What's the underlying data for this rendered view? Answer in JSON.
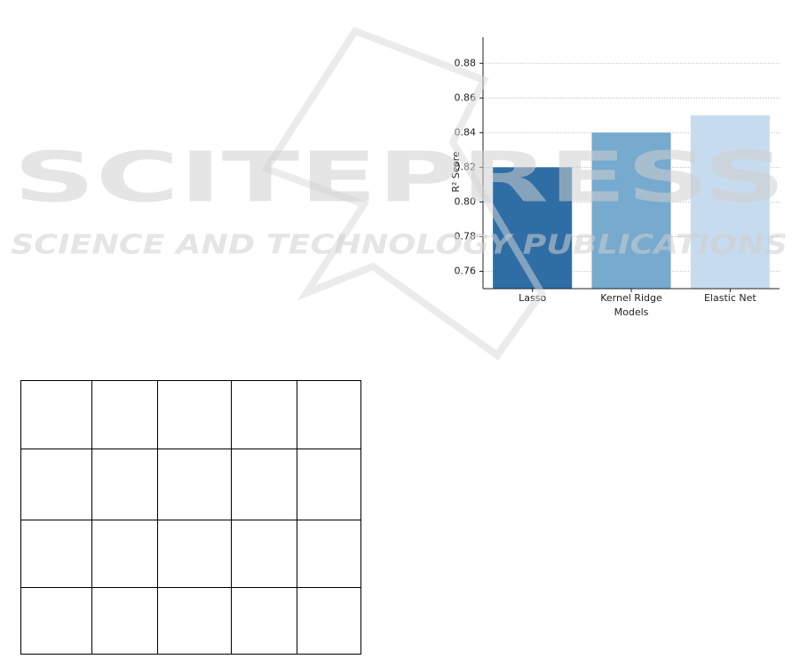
{
  "chart_data": {
    "type": "bar",
    "categories": [
      "Lasso",
      "Kernel Ridge",
      "Elastic Net"
    ],
    "values": [
      0.82,
      0.84,
      0.85
    ],
    "colors": [
      "#2f6ea5",
      "#76aacf",
      "#c7dbee"
    ],
    "x_label": "Models",
    "y_label": "R² Score",
    "ylim": [
      0.75,
      0.895
    ],
    "yticks": [
      0.76,
      0.78,
      {
        "value": 0.8,
        "label": "0.80"
      },
      0.82,
      0.84,
      0.86,
      0.88
    ],
    "grid": true
  },
  "watermark": {
    "title": "SCITEPRESS",
    "subtitle": "SCIENCE AND TECHNOLOGY PUBLICATIONS"
  }
}
